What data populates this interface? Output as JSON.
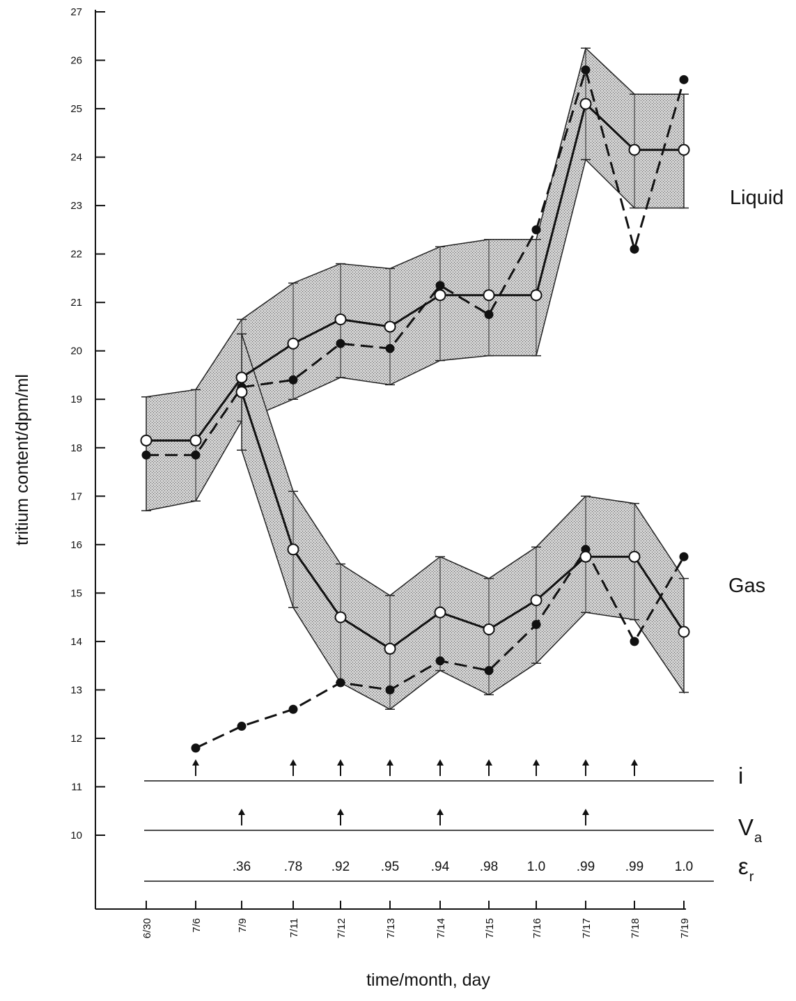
{
  "chart_data": {
    "type": "line",
    "xlabel": "time/month, day",
    "ylabel": "tritium content/dpm/ml",
    "x": [
      "6/30",
      "7/6",
      "7/9",
      "7/11",
      "7/12",
      "7/13",
      "7/14",
      "7/15",
      "7/16",
      "7/17",
      "7/18",
      "7/19"
    ],
    "ylim": [
      9,
      27
    ],
    "yticks": [
      10,
      11,
      12,
      13,
      14,
      15,
      16,
      17,
      18,
      19,
      20,
      21,
      22,
      23,
      24,
      25,
      26,
      27
    ],
    "series": [
      {
        "name": "Liquid",
        "mean": [
          18.15,
          18.15,
          19.45,
          20.15,
          20.65,
          20.5,
          21.15,
          21.15,
          21.15,
          25.1,
          24.15,
          24.15
        ],
        "upper": [
          19.05,
          19.2,
          20.65,
          21.4,
          21.8,
          21.7,
          22.15,
          22.3,
          22.3,
          26.25,
          25.3,
          25.3
        ],
        "lower": [
          16.7,
          16.9,
          18.55,
          19.0,
          19.45,
          19.3,
          19.8,
          19.9,
          19.9,
          23.95,
          22.95,
          22.95
        ],
        "measured": [
          17.85,
          17.85,
          19.25,
          19.4,
          20.15,
          20.05,
          21.35,
          20.75,
          22.5,
          25.8,
          22.1,
          25.6
        ]
      },
      {
        "name": "Gas",
        "mean": [
          null,
          null,
          19.15,
          15.9,
          14.5,
          13.85,
          14.6,
          14.25,
          14.85,
          15.75,
          15.75,
          14.2
        ],
        "upper": [
          null,
          null,
          20.35,
          17.1,
          15.6,
          14.95,
          15.75,
          15.3,
          15.95,
          17.0,
          16.85,
          15.3
        ],
        "lower": [
          null,
          null,
          17.95,
          14.7,
          13.15,
          12.6,
          13.4,
          12.9,
          13.55,
          14.6,
          14.45,
          12.95
        ],
        "measured": [
          null,
          11.8,
          12.25,
          12.6,
          13.15,
          13.0,
          13.6,
          13.4,
          14.35,
          15.9,
          14.0,
          15.75
        ]
      }
    ],
    "event_rows": [
      {
        "label": "i",
        "label_sub": "",
        "arrows_at": [
          "7/6",
          "7/11",
          "7/12",
          "7/13",
          "7/14",
          "7/15",
          "7/16",
          "7/17",
          "7/18"
        ]
      },
      {
        "label": "V",
        "label_sub": "a",
        "arrows_at": [
          "7/9",
          "7/12",
          "7/14",
          "7/17"
        ]
      },
      {
        "label": "ε",
        "label_sub": "r",
        "values": [
          {
            "x": "7/9",
            "text": ".36"
          },
          {
            "x": "7/11",
            "text": ".78"
          },
          {
            "x": "7/12",
            "text": ".92"
          },
          {
            "x": "7/13",
            "text": ".95"
          },
          {
            "x": "7/14",
            "text": ".94"
          },
          {
            "x": "7/15",
            "text": ".98"
          },
          {
            "x": "7/16",
            "text": "1.0"
          },
          {
            "x": "7/17",
            "text": ".99"
          },
          {
            "x": "7/18",
            "text": ".99"
          },
          {
            "x": "7/19",
            "text": "1.0"
          }
        ]
      }
    ],
    "colors": {
      "band_fill": "#c8c8c8",
      "line": "#111111",
      "open_marker_fill": "#ffffff"
    },
    "grid": false
  }
}
